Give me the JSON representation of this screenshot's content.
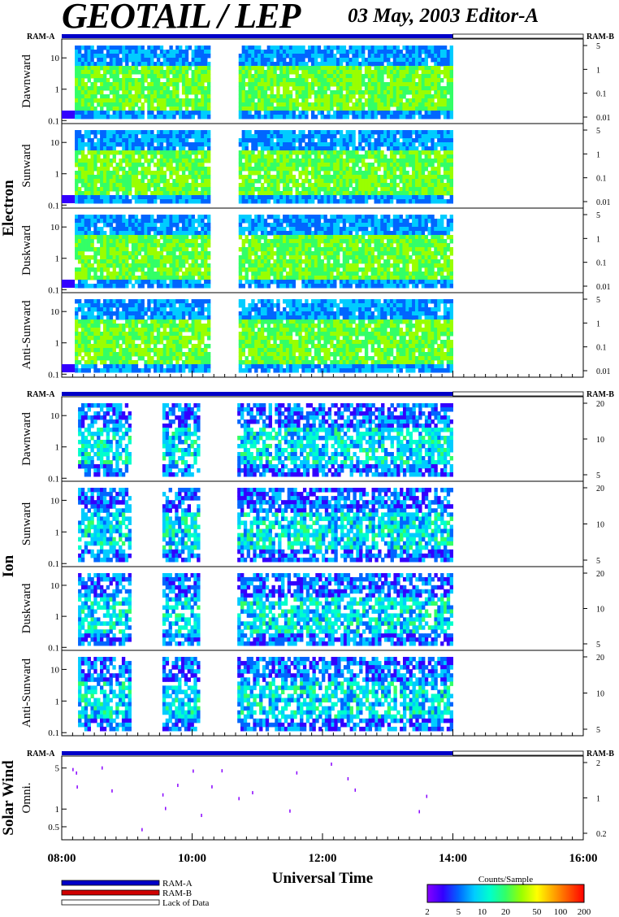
{
  "header": {
    "title": "GEOTAIL / LEP",
    "subtitle": "03 May, 2003   Editor-A"
  },
  "ram_labels": {
    "left": "RAM-A",
    "right": "RAM-B"
  },
  "groups": [
    {
      "name": "Electron",
      "panels": [
        "Dawnward",
        "Sunward",
        "Duskward",
        "Anti-Sunward"
      ]
    },
    {
      "name": "Ion",
      "panels": [
        "Dawnward",
        "Sunward",
        "Duskward",
        "Anti-Sunward"
      ]
    },
    {
      "name": "Solar Wind",
      "panels": [
        "Omni."
      ]
    }
  ],
  "colors": {
    "ram_a": "#0000c8",
    "ram_b": "#d00000",
    "colorbar": [
      "#8800ff",
      "#3300ff",
      "#0066ff",
      "#00ccff",
      "#00ffcc",
      "#33ff66",
      "#99ff00",
      "#ffff00",
      "#ffaa00",
      "#ff5500",
      "#ff0000"
    ]
  },
  "legend": {
    "items": [
      {
        "label": "RAM-A",
        "color": "#0000c8"
      },
      {
        "label": "RAM-B",
        "color": "#d00000"
      },
      {
        "label": "Lack of Data",
        "color": "#ffffff"
      }
    ]
  },
  "colorbar": {
    "title": "Counts/Sample",
    "ticks": [
      "2",
      "5",
      "10",
      "20",
      "50",
      "100",
      "200"
    ]
  },
  "chart_data": {
    "type": "heatmap",
    "xlabel": "Universal Time",
    "x_ticks": [
      "08:00",
      "10:00",
      "12:00",
      "14:00",
      "16:00"
    ],
    "x_range": [
      "08:00",
      "16:00"
    ],
    "data_end": "14:00",
    "gaps": [
      [
        "10:15",
        "10:40"
      ]
    ],
    "panels": [
      {
        "group": "Electron",
        "name": "Dawnward",
        "y_ticks": [
          "0.1",
          "1",
          "10"
        ],
        "y_range": [
          0.08,
          40
        ],
        "right_ticks": [
          "0.01",
          "0.1",
          "1",
          "5"
        ]
      },
      {
        "group": "Electron",
        "name": "Sunward",
        "y_ticks": [
          "0.1",
          "1",
          "10"
        ],
        "y_range": [
          0.08,
          40
        ],
        "right_ticks": [
          "0.01",
          "0.1",
          "1",
          "5"
        ]
      },
      {
        "group": "Electron",
        "name": "Duskward",
        "y_ticks": [
          "0.1",
          "1",
          "10"
        ],
        "y_range": [
          0.08,
          40
        ],
        "right_ticks": [
          "0.01",
          "0.1",
          "1",
          "5"
        ]
      },
      {
        "group": "Electron",
        "name": "Anti-Sunward",
        "y_ticks": [
          "0.1",
          "1",
          "10"
        ],
        "y_range": [
          0.08,
          40
        ],
        "right_ticks": [
          "0.01",
          "0.1",
          "1",
          "5"
        ]
      },
      {
        "group": "Ion",
        "name": "Dawnward",
        "y_ticks": [
          "0.1",
          "1",
          "10"
        ],
        "y_range": [
          0.08,
          40
        ],
        "right_ticks": [
          "5",
          "10",
          "20"
        ]
      },
      {
        "group": "Ion",
        "name": "Sunward",
        "y_ticks": [
          "0.1",
          "1",
          "10"
        ],
        "y_range": [
          0.08,
          40
        ],
        "right_ticks": [
          "5",
          "10",
          "20"
        ]
      },
      {
        "group": "Ion",
        "name": "Duskward",
        "y_ticks": [
          "0.1",
          "1",
          "10"
        ],
        "y_range": [
          0.08,
          40
        ],
        "right_ticks": [
          "5",
          "10",
          "20"
        ]
      },
      {
        "group": "Ion",
        "name": "Anti-Sunward",
        "y_ticks": [
          "0.1",
          "1",
          "10"
        ],
        "y_range": [
          0.08,
          40
        ],
        "right_ticks": [
          "5",
          "10",
          "20"
        ]
      },
      {
        "group": "Solar Wind",
        "name": "Omni.",
        "y_ticks": [
          "0.5",
          "1",
          "5"
        ],
        "y_range": [
          0.3,
          8
        ],
        "right_ticks": [
          "0.2",
          "1",
          "2"
        ]
      }
    ]
  }
}
